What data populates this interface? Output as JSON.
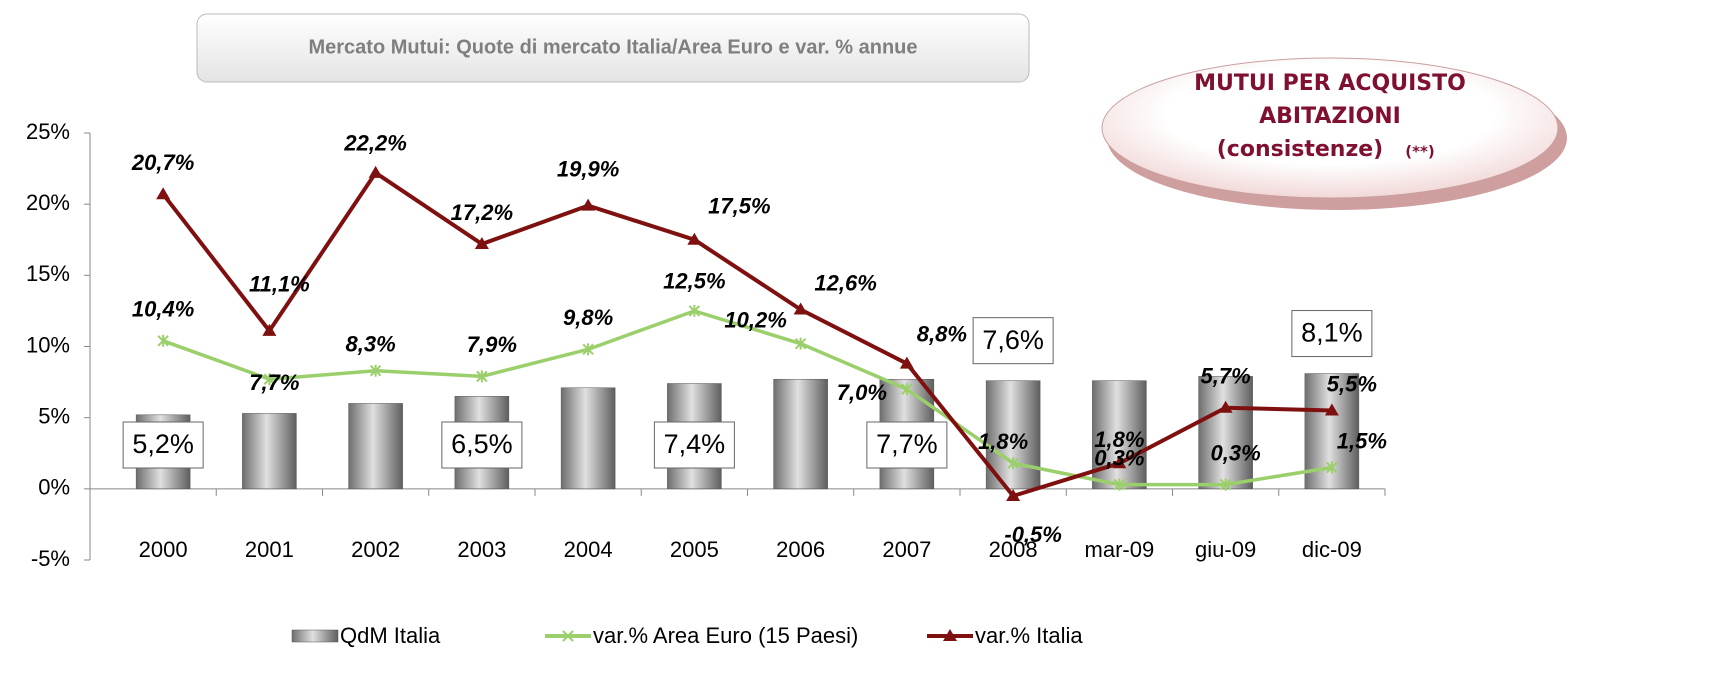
{
  "chart_data": {
    "type": "bar-line",
    "title": "Mercato Mutui: Quote di mercato Italia/Area Euro e var. % annue",
    "annotation": {
      "lines": [
        "MUTUI PER ACQUISTO",
        "ABITAZIONI",
        "(consistenze)"
      ],
      "note": "(**)"
    },
    "categories": [
      "2000",
      "2001",
      "2002",
      "2003",
      "2004",
      "2005",
      "2006",
      "2007",
      "2008",
      "mar-09",
      "giu-09",
      "dic-09"
    ],
    "series": [
      {
        "name": "QdM Italia",
        "type": "bar",
        "color": "#a6a6a6",
        "values": [
          5.2,
          5.3,
          6.0,
          6.5,
          7.1,
          7.4,
          7.7,
          7.7,
          7.6,
          7.6,
          7.9,
          8.1
        ],
        "value_labels": [
          "5,2%",
          null,
          null,
          "6,5%",
          null,
          "7,4%",
          null,
          "7,7%",
          "7,6%",
          null,
          null,
          "8,1%"
        ]
      },
      {
        "name": "var.% Area Euro (15 Paesi)",
        "type": "line",
        "color": "#9bcf6b",
        "values": [
          10.4,
          7.7,
          8.3,
          7.9,
          9.8,
          12.5,
          10.2,
          7.0,
          1.8,
          0.3,
          0.3,
          1.5
        ],
        "value_labels": [
          "10,4%",
          "7,7%",
          "8,3%",
          "7,9%",
          "9,8%",
          "12,5%",
          "10,2%",
          "7,0%",
          "1,8%",
          "0,3%",
          "0,3%",
          "1,5%"
        ]
      },
      {
        "name": "var.% Italia",
        "type": "line",
        "color": "#7f1010",
        "values": [
          20.7,
          11.1,
          22.2,
          17.2,
          19.9,
          17.5,
          12.6,
          8.8,
          -0.5,
          1.8,
          5.7,
          5.5
        ],
        "value_labels": [
          "20,7%",
          "11,1%",
          "22,2%",
          "17,2%",
          "19,9%",
          "17,5%",
          "12,6%",
          "8,8%",
          "-0,5%",
          "1,8%",
          "5,7%",
          "5,5%"
        ]
      }
    ],
    "ylim": [
      -5,
      25
    ],
    "yticks": [
      {
        "value": -5,
        "label": "-5%"
      },
      {
        "value": 0,
        "label": "0%"
      },
      {
        "value": 5,
        "label": "5%"
      },
      {
        "value": 10,
        "label": "10%"
      },
      {
        "value": 15,
        "label": "15%"
      },
      {
        "value": 20,
        "label": "20%"
      },
      {
        "value": 25,
        "label": "25%"
      }
    ],
    "legend": "bottom"
  }
}
